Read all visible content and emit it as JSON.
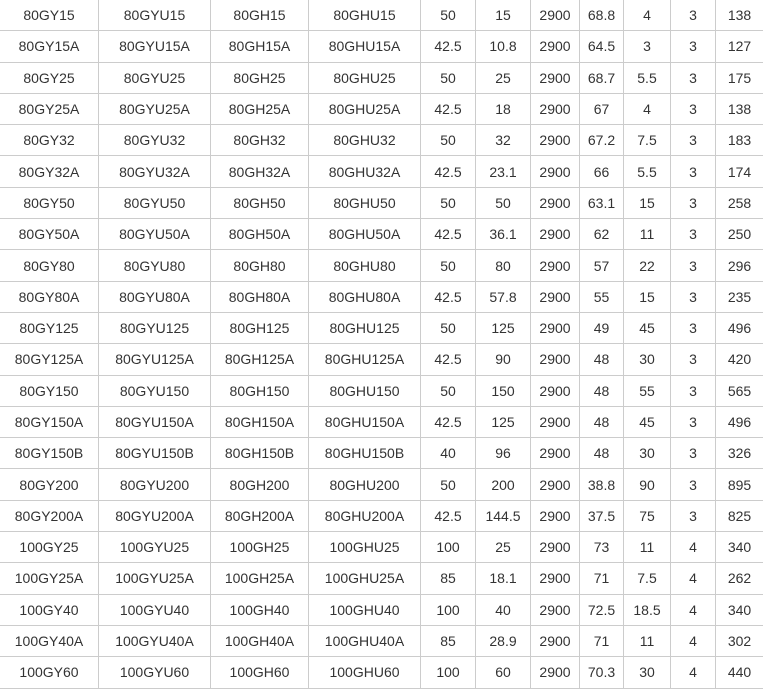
{
  "table": {
    "rows": [
      [
        "80GY15",
        "80GYU15",
        "80GH15",
        "80GHU15",
        "50",
        "15",
        "2900",
        "68.8",
        "4",
        "3",
        "138"
      ],
      [
        "80GY15A",
        "80GYU15A",
        "80GH15A",
        "80GHU15A",
        "42.5",
        "10.8",
        "2900",
        "64.5",
        "3",
        "3",
        "127"
      ],
      [
        "80GY25",
        "80GYU25",
        "80GH25",
        "80GHU25",
        "50",
        "25",
        "2900",
        "68.7",
        "5.5",
        "3",
        "175"
      ],
      [
        "80GY25A",
        "80GYU25A",
        "80GH25A",
        "80GHU25A",
        "42.5",
        "18",
        "2900",
        "67",
        "4",
        "3",
        "138"
      ],
      [
        "80GY32",
        "80GYU32",
        "80GH32",
        "80GHU32",
        "50",
        "32",
        "2900",
        "67.2",
        "7.5",
        "3",
        "183"
      ],
      [
        "80GY32A",
        "80GYU32A",
        "80GH32A",
        "80GHU32A",
        "42.5",
        "23.1",
        "2900",
        "66",
        "5.5",
        "3",
        "174"
      ],
      [
        "80GY50",
        "80GYU50",
        "80GH50",
        "80GHU50",
        "50",
        "50",
        "2900",
        "63.1",
        "15",
        "3",
        "258"
      ],
      [
        "80GY50A",
        "80GYU50A",
        "80GH50A",
        "80GHU50A",
        "42.5",
        "36.1",
        "2900",
        "62",
        "11",
        "3",
        "250"
      ],
      [
        "80GY80",
        "80GYU80",
        "80GH80",
        "80GHU80",
        "50",
        "80",
        "2900",
        "57",
        "22",
        "3",
        "296"
      ],
      [
        "80GY80A",
        "80GYU80A",
        "80GH80A",
        "80GHU80A",
        "42.5",
        "57.8",
        "2900",
        "55",
        "15",
        "3",
        "235"
      ],
      [
        "80GY125",
        "80GYU125",
        "80GH125",
        "80GHU125",
        "50",
        "125",
        "2900",
        "49",
        "45",
        "3",
        "496"
      ],
      [
        "80GY125A",
        "80GYU125A",
        "80GH125A",
        "80GHU125A",
        "42.5",
        "90",
        "2900",
        "48",
        "30",
        "3",
        "420"
      ],
      [
        "80GY150",
        "80GYU150",
        "80GH150",
        "80GHU150",
        "50",
        "150",
        "2900",
        "48",
        "55",
        "3",
        "565"
      ],
      [
        "80GY150A",
        "80GYU150A",
        "80GH150A",
        "80GHU150A",
        "42.5",
        "125",
        "2900",
        "48",
        "45",
        "3",
        "496"
      ],
      [
        "80GY150B",
        "80GYU150B",
        "80GH150B",
        "80GHU150B",
        "40",
        "96",
        "2900",
        "48",
        "30",
        "3",
        "326"
      ],
      [
        "80GY200",
        "80GYU200",
        "80GH200",
        "80GHU200",
        "50",
        "200",
        "2900",
        "38.8",
        "90",
        "3",
        "895"
      ],
      [
        "80GY200A",
        "80GYU200A",
        "80GH200A",
        "80GHU200A",
        "42.5",
        "144.5",
        "2900",
        "37.5",
        "75",
        "3",
        "825"
      ],
      [
        "100GY25",
        "100GYU25",
        "100GH25",
        "100GHU25",
        "100",
        "25",
        "2900",
        "73",
        "11",
        "4",
        "340"
      ],
      [
        "100GY25A",
        "100GYU25A",
        "100GH25A",
        "100GHU25A",
        "85",
        "18.1",
        "2900",
        "71",
        "7.5",
        "4",
        "262"
      ],
      [
        "100GY40",
        "100GYU40",
        "100GH40",
        "100GHU40",
        "100",
        "40",
        "2900",
        "72.5",
        "18.5",
        "4",
        "340"
      ],
      [
        "100GY40A",
        "100GYU40A",
        "100GH40A",
        "100GHU40A",
        "85",
        "28.9",
        "2900",
        "71",
        "11",
        "4",
        "302"
      ],
      [
        "100GY60",
        "100GYU60",
        "100GH60",
        "100GHU60",
        "100",
        "60",
        "2900",
        "70.3",
        "30",
        "4",
        "440"
      ]
    ]
  }
}
